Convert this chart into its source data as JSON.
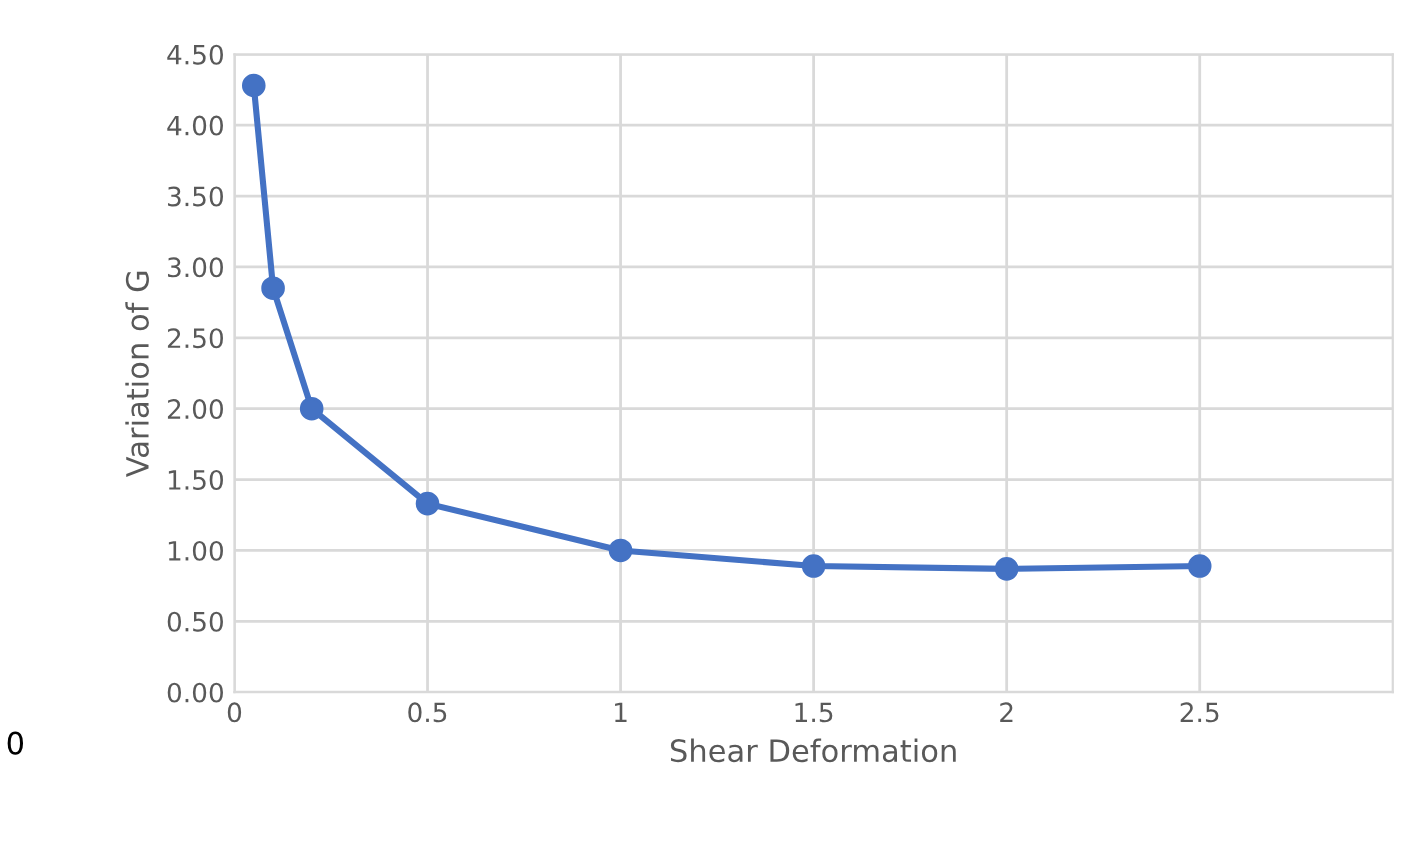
{
  "chart_data": {
    "type": "line",
    "xlabel": "Shear Deformation",
    "ylabel": "Variation of G",
    "x": [
      0.05,
      0.1,
      0.2,
      0.5,
      1,
      1.5,
      2,
      2.5
    ],
    "series": [
      {
        "color": "#4472c4",
        "values": [
          4.28,
          2.85,
          2.0,
          1.33,
          1.0,
          0.89,
          0.87,
          0.89
        ]
      }
    ],
    "marker": "circle",
    "line_style": "solid",
    "grid": true,
    "xlim": [
      0,
      3
    ],
    "xticks": [
      0,
      0.5,
      1,
      1.5,
      2,
      2.5
    ],
    "ylim": [
      0,
      4.5
    ],
    "yticks": [
      {
        "value": 0,
        "label": "0.00"
      },
      {
        "value": 0.5,
        "label": "0.50"
      },
      {
        "value": 1,
        "label": "1.00"
      },
      {
        "value": 1.5,
        "label": "1.50"
      },
      {
        "value": 2,
        "label": "2.00"
      },
      {
        "value": 2.5,
        "label": "2.50"
      },
      {
        "value": 3,
        "label": "3.00"
      },
      {
        "value": 3.5,
        "label": "3.50"
      },
      {
        "value": 4,
        "label": "4.00"
      },
      {
        "value": 4.5,
        "label": "4.50"
      }
    ],
    "annotations": [
      "0"
    ]
  }
}
